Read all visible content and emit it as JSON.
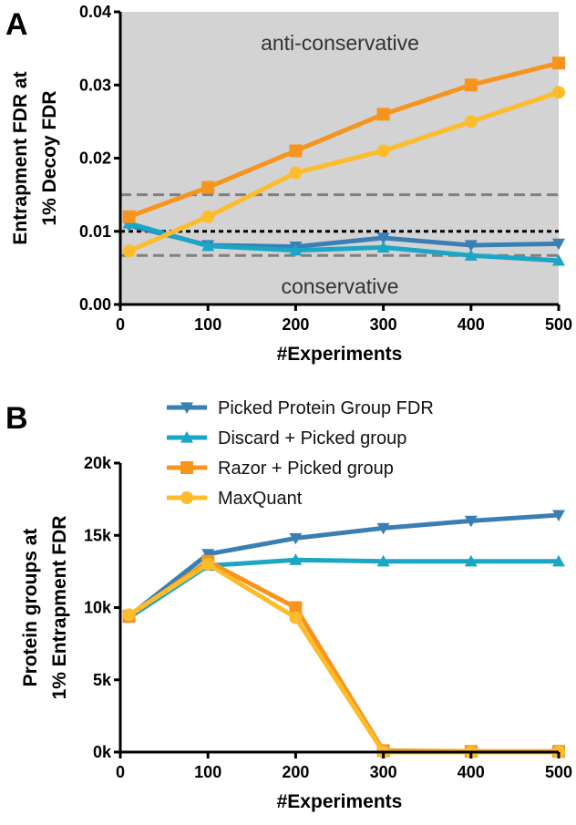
{
  "chart_data": [
    {
      "panel": "A",
      "type": "line",
      "xlabel": "#Experiments",
      "ylabel": [
        "Entrapment FDR at",
        "1% Decoy FDR"
      ],
      "xlim": [
        0,
        500
      ],
      "ylim": [
        0,
        0.04
      ],
      "xticks": [
        0,
        100,
        200,
        300,
        400,
        500
      ],
      "xtick_labels": [
        "0",
        "100",
        "200",
        "300",
        "400",
        "500"
      ],
      "yticks": [
        0.0,
        0.01,
        0.02,
        0.03,
        0.04
      ],
      "ytick_labels": [
        "0.00",
        "0.01",
        "0.02",
        "0.03",
        "0.04"
      ],
      "region_labels": [
        "anti-conservative",
        "conservative"
      ],
      "reference_lines": [
        {
          "y": 0.015,
          "style": "dashed",
          "color": "#808080"
        },
        {
          "y": 0.01,
          "style": "dotted",
          "color": "#000000"
        },
        {
          "y": 0.0067,
          "style": "dashed",
          "color": "#808080"
        }
      ],
      "series": [
        {
          "name": "Picked Protein Group FDR",
          "color": "#3a7fb4",
          "marker": "triangle-down",
          "x": [
            10,
            100,
            200,
            300,
            400,
            500
          ],
          "y": [
            0.0108,
            0.0081,
            0.0079,
            0.0091,
            0.0081,
            0.0083
          ]
        },
        {
          "name": "Discard + Picked group",
          "color": "#1aa6c4",
          "marker": "triangle-up",
          "x": [
            10,
            100,
            200,
            300,
            400,
            500
          ],
          "y": [
            0.0111,
            0.008,
            0.0074,
            0.0078,
            0.0067,
            0.006
          ]
        },
        {
          "name": "Razor + Picked group",
          "color": "#f7941d",
          "marker": "square",
          "x": [
            10,
            100,
            200,
            300,
            400,
            500
          ],
          "y": [
            0.012,
            0.016,
            0.021,
            0.026,
            0.03,
            0.033
          ]
        },
        {
          "name": "MaxQuant",
          "color": "#fdbc2a",
          "marker": "circle",
          "x": [
            10,
            100,
            200,
            300,
            400,
            500
          ],
          "y": [
            0.0073,
            0.012,
            0.018,
            0.021,
            0.025,
            0.029
          ]
        }
      ]
    },
    {
      "panel": "B",
      "type": "line",
      "xlabel": "#Experiments",
      "ylabel": [
        "Protein groups at",
        "1% Entrapment FDR"
      ],
      "xlim": [
        0,
        500
      ],
      "ylim": [
        0,
        20000
      ],
      "xticks": [
        0,
        100,
        200,
        300,
        400,
        500
      ],
      "xtick_labels": [
        "0",
        "100",
        "200",
        "300",
        "400",
        "500"
      ],
      "yticks": [
        0,
        5000,
        10000,
        15000,
        20000
      ],
      "ytick_labels": [
        "0k",
        "5k",
        "10k",
        "15k",
        "20k"
      ],
      "legend": "top-center",
      "series": [
        {
          "name": "Picked Protein Group FDR",
          "color": "#3a7fb4",
          "marker": "triangle-down",
          "x": [
            10,
            100,
            200,
            300,
            400,
            500
          ],
          "y": [
            9400,
            13700,
            14800,
            15500,
            16000,
            16400
          ]
        },
        {
          "name": "Discard + Picked group",
          "color": "#1aa6c4",
          "marker": "triangle-up",
          "x": [
            10,
            100,
            200,
            300,
            400,
            500
          ],
          "y": [
            9300,
            12900,
            13300,
            13200,
            13200,
            13200
          ]
        },
        {
          "name": "Razor + Picked group",
          "color": "#f7941d",
          "marker": "square",
          "x": [
            10,
            100,
            200,
            300,
            400,
            500
          ],
          "y": [
            9400,
            13200,
            10000,
            100,
            50,
            50
          ]
        },
        {
          "name": "MaxQuant",
          "color": "#fdbc2a",
          "marker": "circle",
          "x": [
            10,
            100,
            200,
            300,
            400,
            500
          ],
          "y": [
            9500,
            13000,
            9300,
            0,
            0,
            0
          ]
        }
      ]
    }
  ]
}
